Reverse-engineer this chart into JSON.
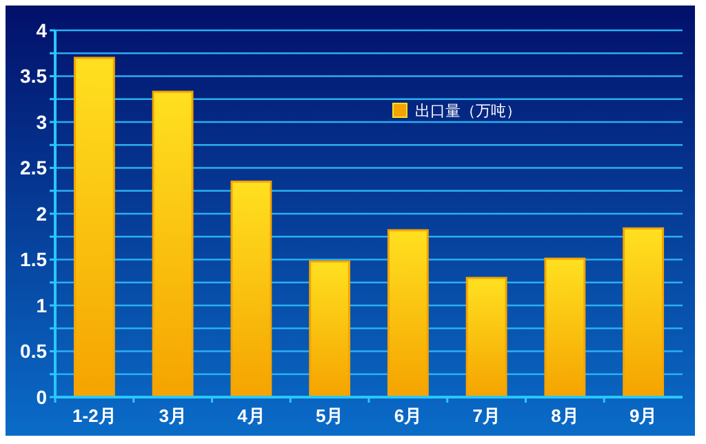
{
  "chart_data": {
    "type": "bar",
    "categories": [
      "1-2月",
      "3月",
      "4月",
      "5月",
      "6月",
      "7月",
      "8月",
      "9月"
    ],
    "series": [
      {
        "name": "出口量（万吨）",
        "color": "#f5a300",
        "values": [
          3.7,
          3.33,
          2.35,
          1.48,
          1.82,
          1.3,
          1.51,
          1.84
        ]
      }
    ],
    "ylim": [
      0,
      4
    ],
    "yticks": [
      0,
      {
        "value": 0.25,
        "label": null
      },
      0.5,
      {
        "value": 0.75,
        "label": null
      },
      1,
      {
        "value": 1.25,
        "label": null
      },
      1.5,
      {
        "value": 1.75,
        "label": null
      },
      2,
      {
        "value": 2.25,
        "label": null
      },
      2.5,
      {
        "value": 2.75,
        "label": null
      },
      3,
      {
        "value": 3.25,
        "label": null
      },
      3.5,
      {
        "value": 3.75,
        "label": null
      },
      4
    ],
    "grid": "y",
    "legend": "top right"
  }
}
